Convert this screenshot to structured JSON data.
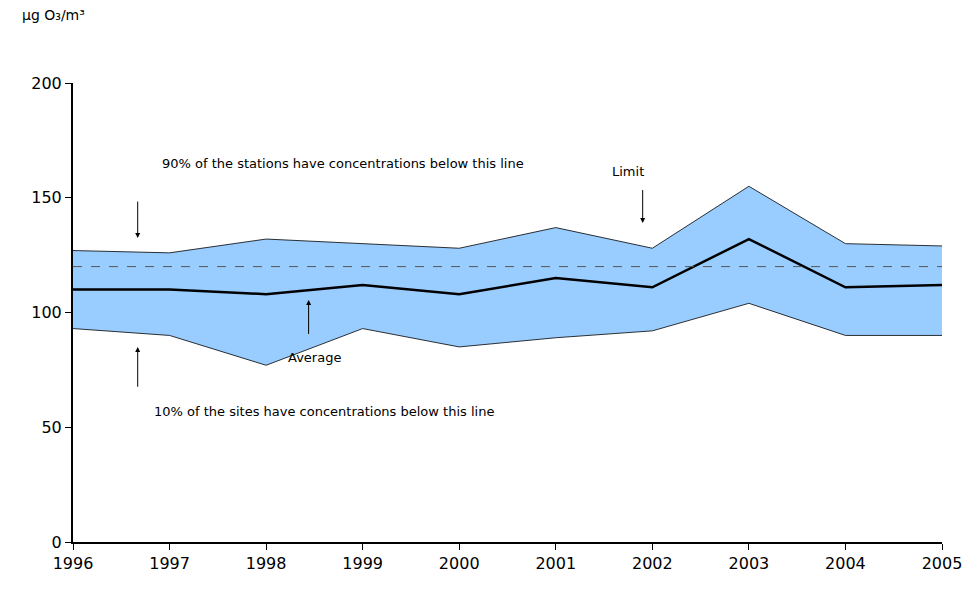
{
  "chart_data": {
    "type": "line",
    "y_label": "µg O₃/m³",
    "x": [
      1996,
      1997,
      1998,
      1999,
      2000,
      2001,
      2002,
      2003,
      2004,
      2005
    ],
    "xlim": [
      1996,
      2005
    ],
    "xticks": [
      1996,
      1997,
      1998,
      1999,
      2000,
      2001,
      2002,
      2003,
      2004,
      2005
    ],
    "ylim": [
      0,
      200
    ],
    "yticks": [
      0,
      50,
      100,
      150,
      200
    ],
    "grid": false,
    "series": [
      {
        "name": "10% of the sites have concentrations below this line",
        "type": "line",
        "color": "#000000",
        "line_style": "solid",
        "values": [
          93,
          90,
          77,
          93,
          85,
          89,
          92,
          104,
          90,
          90
        ]
      },
      {
        "name": "90% of the stations have concentrations below this line",
        "type": "area",
        "color": "#99ccff",
        "line_style": "solid",
        "values": [
          127,
          126,
          132,
          130,
          128,
          137,
          128,
          155,
          130,
          129
        ]
      },
      {
        "name": "Average",
        "type": "line",
        "color": "#000000",
        "line_style": "solid",
        "values": [
          110,
          110,
          108,
          112,
          108,
          115,
          111,
          132,
          111,
          112
        ]
      },
      {
        "name": "Limit",
        "type": "line",
        "color": "#555555",
        "line_style": "dashed",
        "values": [
          120,
          120,
          120,
          120,
          120,
          120,
          120,
          120,
          120,
          120
        ]
      }
    ]
  }
}
